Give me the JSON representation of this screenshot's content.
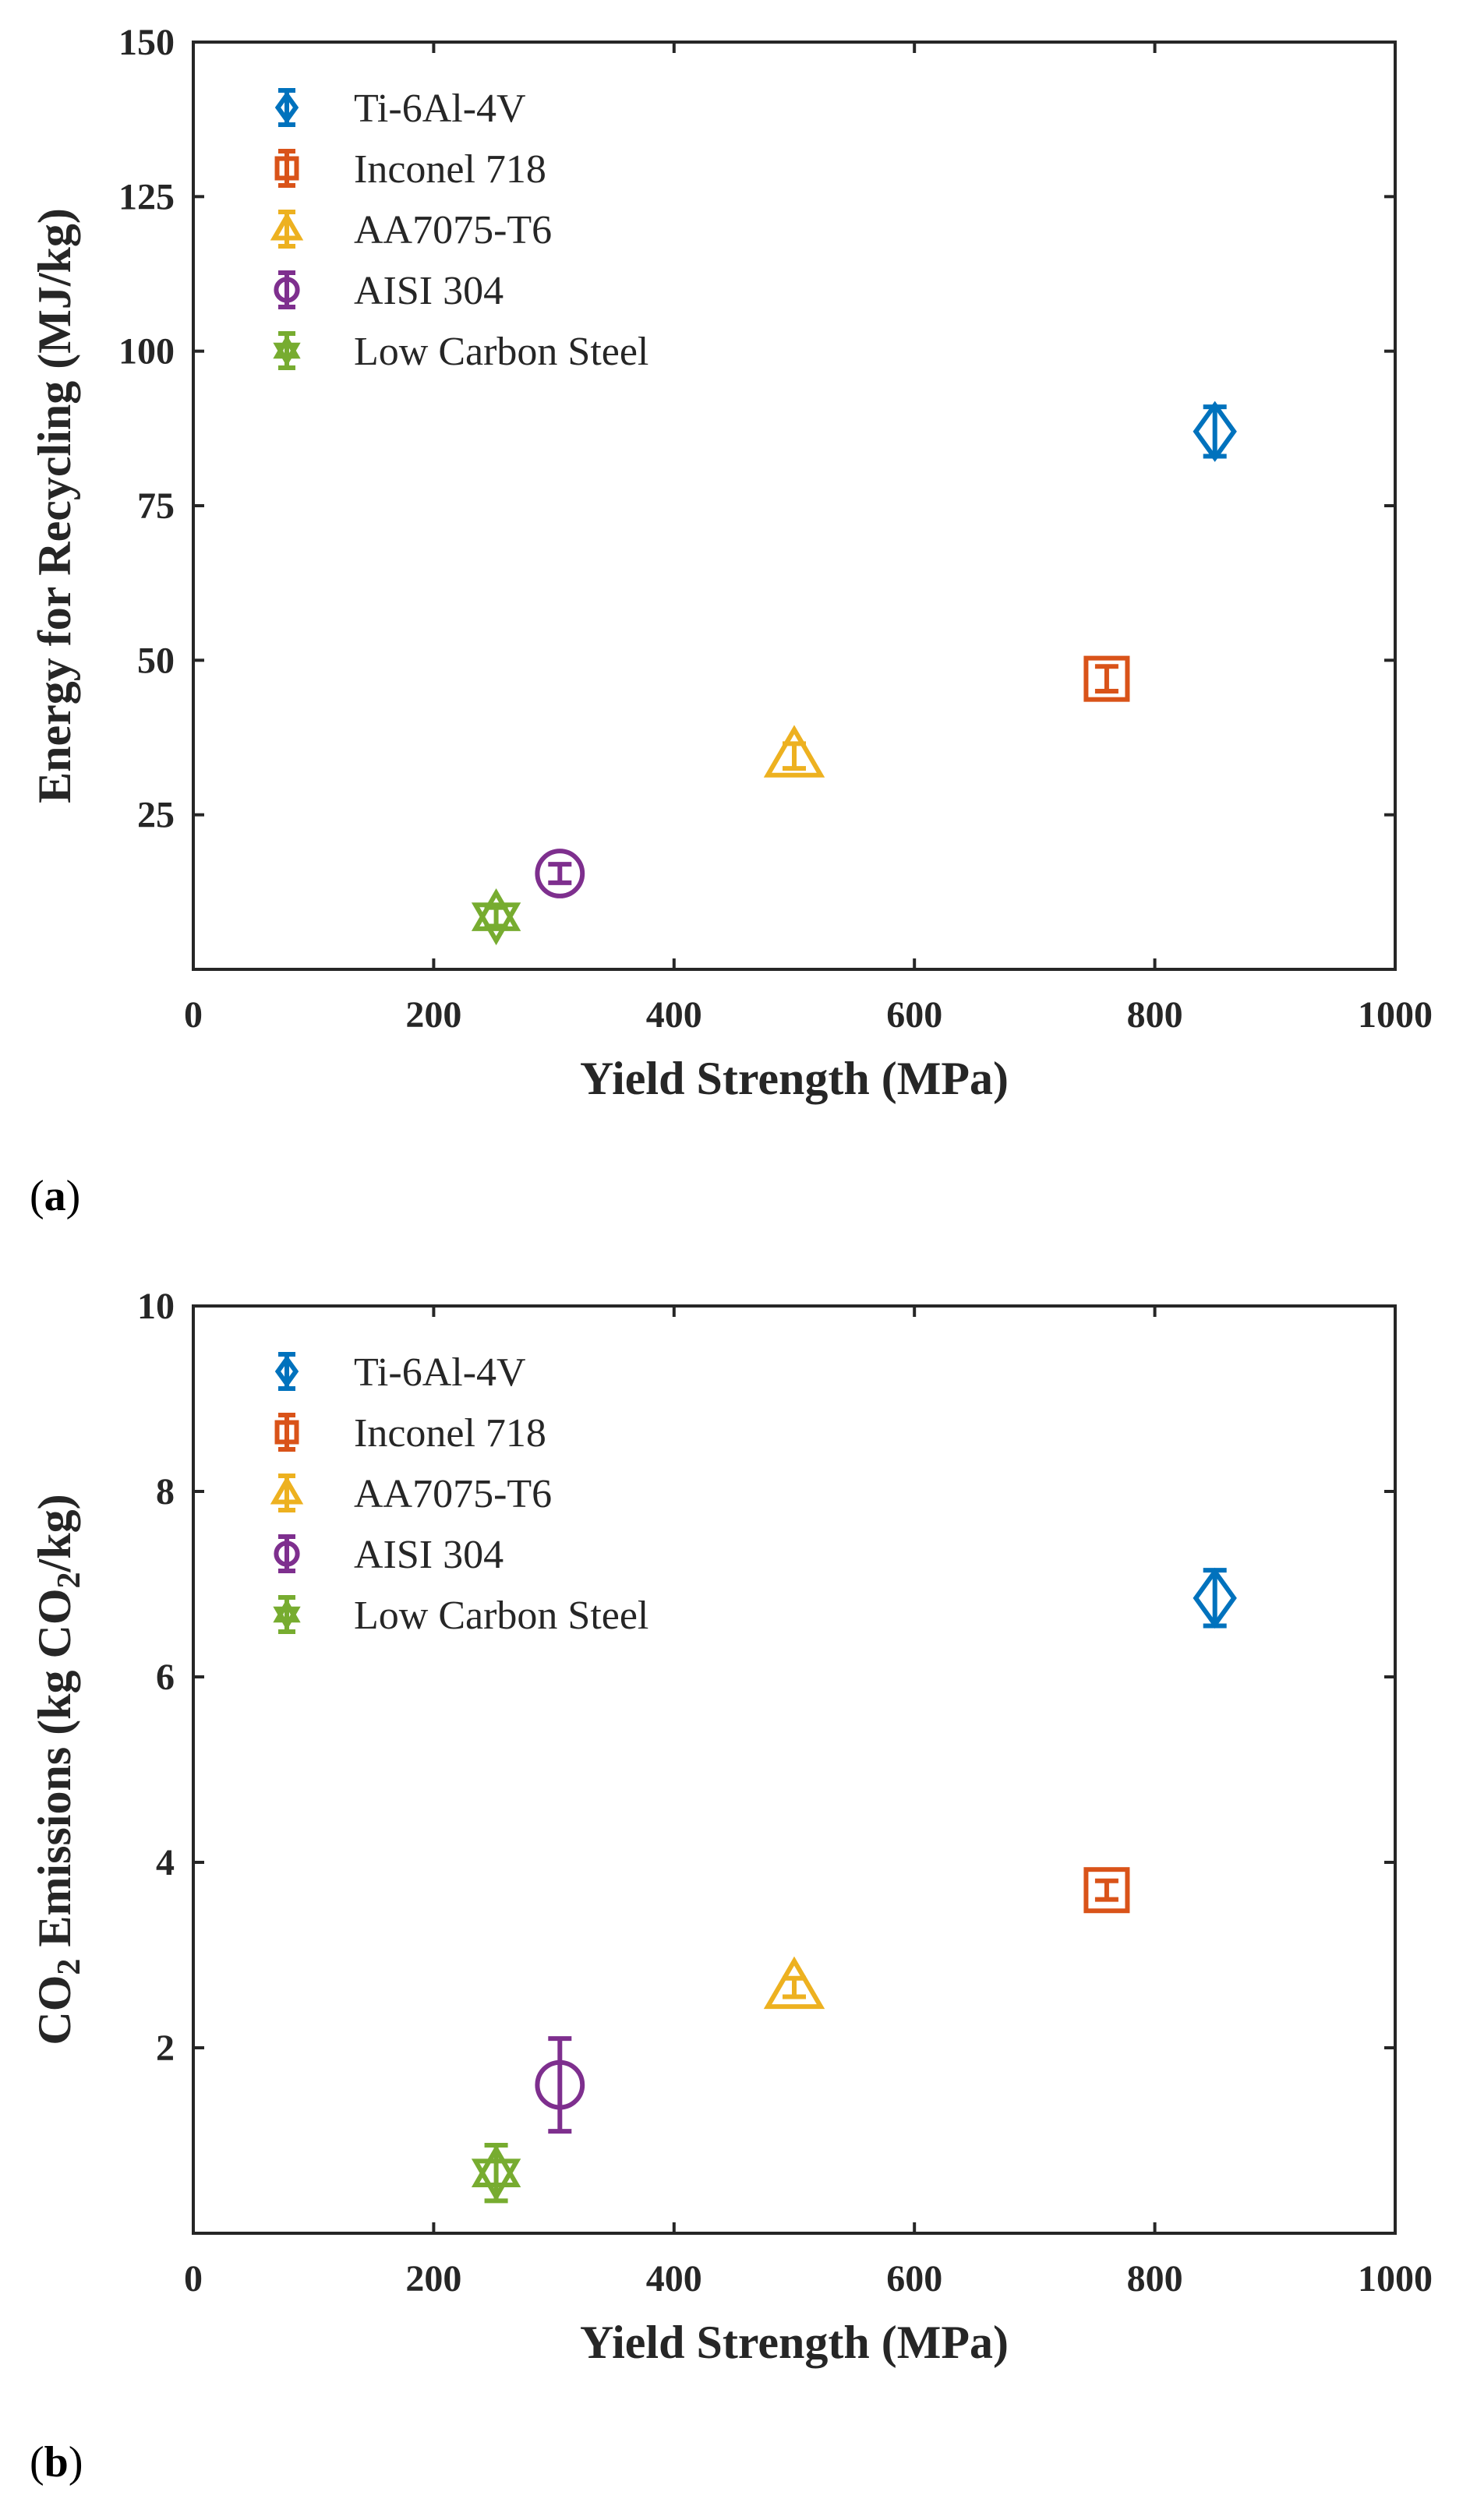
{
  "chart_data": [
    {
      "type": "scatter",
      "panel_label": "(a)",
      "panel_letter": "a",
      "title": "",
      "xlabel": "Yield Strength (MPa)",
      "ylabel": "Energy for Recycling (MJ/kg)",
      "xlim": [
        0,
        1000
      ],
      "ylim": [
        0,
        150
      ],
      "xticks": [
        0,
        200,
        400,
        600,
        800,
        1000
      ],
      "yticks": [
        25,
        50,
        75,
        100,
        125,
        150
      ],
      "grid": false,
      "legend_position": "top-left",
      "series": [
        {
          "name": "Ti-6Al-4V",
          "marker": "diamond",
          "color": "#0072BD",
          "x": 850,
          "y": 87,
          "error": 4
        },
        {
          "name": "Inconel 718",
          "marker": "square",
          "color": "#D95319",
          "x": 760,
          "y": 47,
          "error": 2
        },
        {
          "name": "AA7075-T6",
          "marker": "triangle",
          "color": "#EDB120",
          "x": 500,
          "y": 34.5,
          "error": 2
        },
        {
          "name": "AISI 304",
          "marker": "circle",
          "color": "#7E2F8E",
          "x": 305,
          "y": 15.5,
          "error": 1.5
        },
        {
          "name": "Low Carbon Steel",
          "marker": "hexagram",
          "color": "#77AC30",
          "x": 252,
          "y": 8.5,
          "error": 1.5
        }
      ]
    },
    {
      "type": "scatter",
      "panel_label": "(b)",
      "panel_letter": "b",
      "title": "",
      "xlabel": "Yield Strength (MPa)",
      "ylabel_parts": [
        "CO",
        "2",
        " Emissions (kg CO",
        "2",
        "/kg)"
      ],
      "xlim": [
        0,
        1000
      ],
      "ylim": [
        0,
        10
      ],
      "xticks": [
        0,
        200,
        400,
        600,
        800,
        1000
      ],
      "yticks": [
        2,
        4,
        6,
        8,
        10
      ],
      "grid": false,
      "legend_position": "top-left",
      "series": [
        {
          "name": "Ti-6Al-4V",
          "marker": "diamond",
          "color": "#0072BD",
          "x": 850,
          "y": 6.85,
          "error": 0.3
        },
        {
          "name": "Inconel 718",
          "marker": "square",
          "color": "#D95319",
          "x": 760,
          "y": 3.7,
          "error": 0.1
        },
        {
          "name": "AA7075-T6",
          "marker": "triangle",
          "color": "#EDB120",
          "x": 500,
          "y": 2.65,
          "error": 0.1
        },
        {
          "name": "AISI 304",
          "marker": "circle",
          "color": "#7E2F8E",
          "x": 305,
          "y": 1.6,
          "error": 0.5
        },
        {
          "name": "Low Carbon Steel",
          "marker": "hexagram",
          "color": "#77AC30",
          "x": 252,
          "y": 0.65,
          "error": 0.3
        }
      ]
    }
  ]
}
